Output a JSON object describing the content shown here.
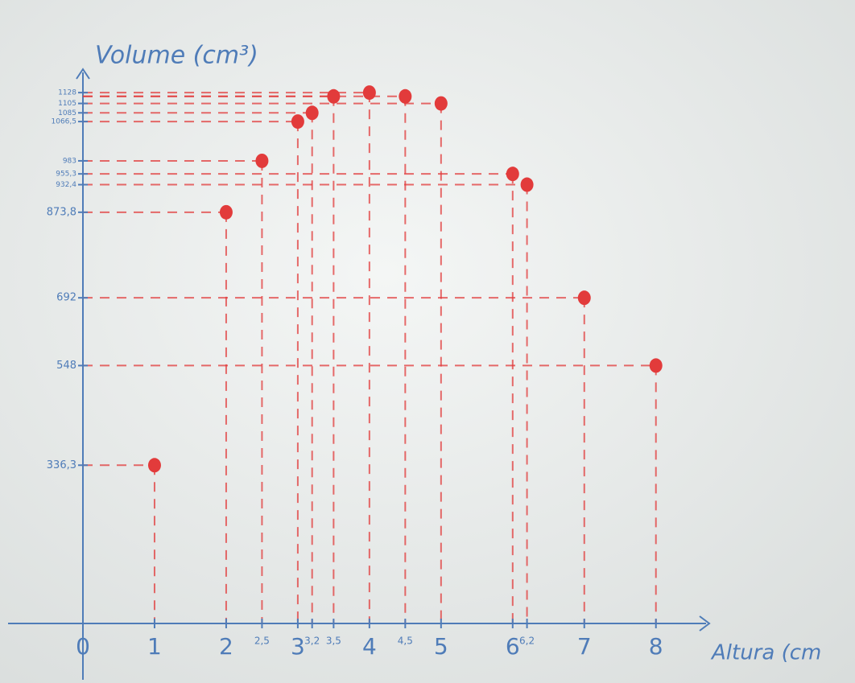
{
  "chart_data": {
    "type": "scatter",
    "y_label": "Volume (cm³)",
    "x_label": "Altura (cm",
    "x": [
      1,
      2,
      2.5,
      3,
      3.2,
      3.5,
      4,
      4.5,
      5,
      6,
      6.2,
      7,
      8
    ],
    "values": [
      336.3,
      873.8,
      983,
      1066.5,
      1085,
      1120,
      1128,
      1120,
      1105,
      955.3,
      932.4,
      692,
      548
    ],
    "color": "#e23b3b",
    "axis_color": "#4f7cb8",
    "guides": true,
    "xlim": [
      0,
      8.7
    ],
    "ylim": [
      0,
      1200
    ],
    "xticks": [
      0,
      1,
      2,
      {
        "value": 2.5,
        "label": "2,5"
      },
      3,
      {
        "value": 3.2,
        "label": "3,2"
      },
      {
        "value": 3.5,
        "label": "3,5"
      },
      4,
      {
        "value": 4.5,
        "label": "4,5"
      },
      5,
      6,
      {
        "value": 6.2,
        "label": "6,2"
      },
      7,
      8
    ],
    "yticks": [
      {
        "value": 336.3,
        "label": "336,3"
      },
      548,
      692,
      {
        "value": 873.8,
        "label": "873,8"
      },
      {
        "value": 932.4,
        "label": "932,4"
      },
      {
        "value": 955.3,
        "label": "955,3"
      },
      983,
      {
        "value": 1066.5,
        "label": "1066,5"
      },
      1085,
      1105,
      1128
    ]
  }
}
